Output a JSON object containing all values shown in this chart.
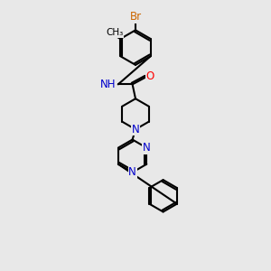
{
  "bg_color": "#e8e8e8",
  "bond_color": "#000000",
  "bond_width": 1.5,
  "atom_colors": {
    "N": "#0000cc",
    "O": "#ff0000",
    "Br": "#cc6600",
    "C": "#000000",
    "H": "#4a9090"
  },
  "font_size": 8.5,
  "fig_size": [
    3.0,
    3.0
  ],
  "dpi": 100
}
